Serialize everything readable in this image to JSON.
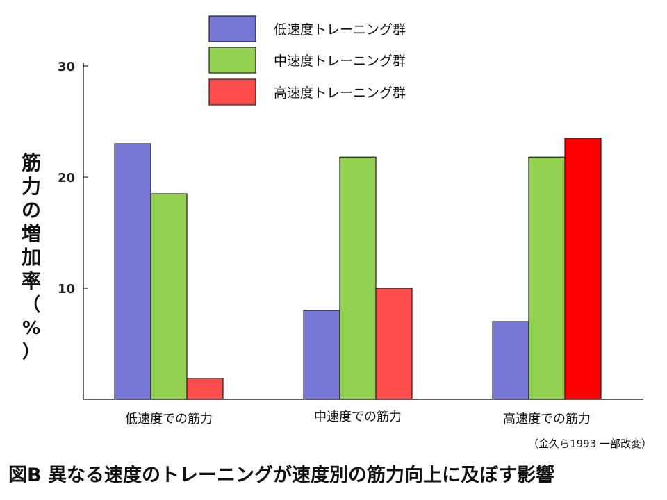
{
  "chart_data": {
    "type": "bar",
    "categories": [
      "低速度での筋力",
      "中速度での筋力",
      "高速度での筋力"
    ],
    "series": [
      {
        "name": "低速度トレーニング群",
        "color": "#7777d6",
        "values": [
          23,
          8,
          7
        ]
      },
      {
        "name": "中速度トレーニング群",
        "color": "#92d050",
        "values": [
          18.5,
          21.8,
          21.8
        ]
      },
      {
        "name": "高速度トレーニング群",
        "color": "#ff4d4d",
        "values": [
          1.9,
          10,
          23.5
        ]
      }
    ],
    "highlight_color": "#ff0000",
    "ylim": [
      0,
      30
    ],
    "yticks": [
      "10",
      "20",
      "30"
    ],
    "ylabel": "筋力の増加率（%）",
    "legend_position": "top-center"
  },
  "source_note": "（金久ら1993 一部改変）",
  "figure_title": "図B 異なる速度のトレーニングが速度別の筋力向上に及ぼす影響"
}
